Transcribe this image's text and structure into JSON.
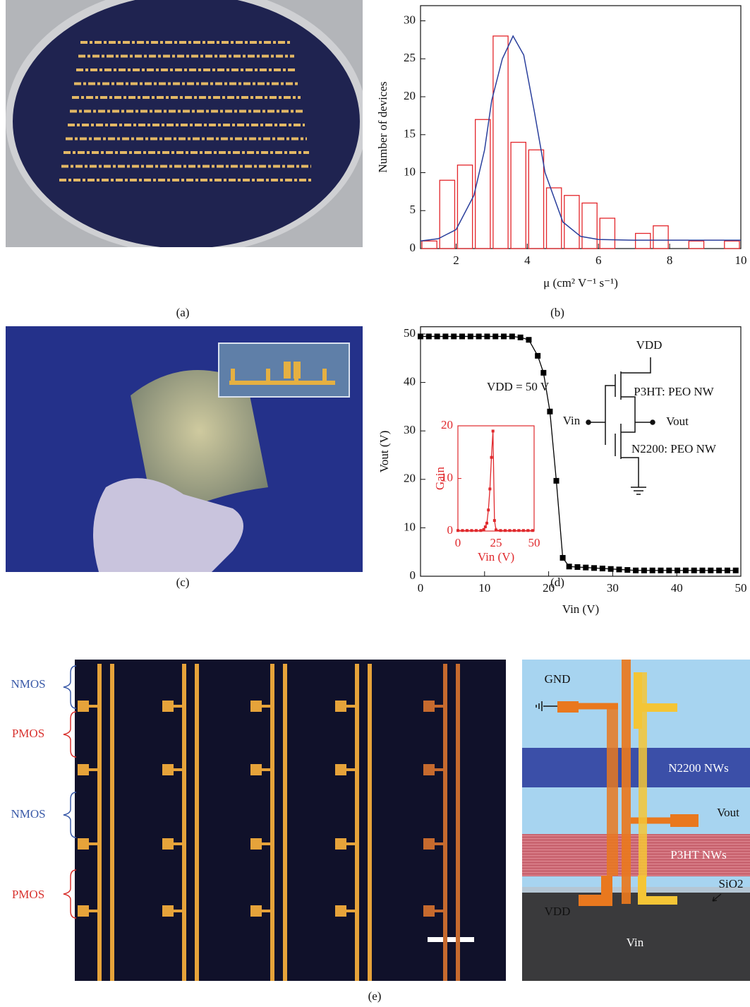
{
  "figure": {
    "panel_labels": [
      "(a)",
      "(b)",
      "(c)",
      "(d)",
      "(e)"
    ],
    "e_labels": [
      "NMOS",
      "PMOS",
      "NMOS",
      "PMOS"
    ],
    "schematic_labels": [
      "GND",
      "N2200 NWs",
      "Vout",
      "P3HT NWs",
      "VDD",
      "SiO2",
      "Vin"
    ]
  },
  "chart_data": [
    {
      "type": "histogram",
      "xlabel": "μ (cm² V⁻¹ s⁻¹)",
      "ylabel": "Number of devices",
      "bins": [
        1.0,
        1.5,
        2.0,
        2.5,
        3.0,
        3.5,
        4.0,
        4.5,
        5.0,
        5.5,
        6.0,
        6.5,
        7.0,
        7.5,
        8.0,
        8.5,
        9.0,
        9.5,
        10.0
      ],
      "values": [
        1,
        9,
        11,
        17,
        28,
        14,
        13,
        8,
        7,
        6,
        4,
        0,
        2,
        3,
        0,
        1,
        0,
        1
      ],
      "color": "#e3262b",
      "fit": {
        "color": "#2a3f9c",
        "x": [
          1.0,
          1.5,
          2.0,
          2.5,
          2.8,
          3.0,
          3.3,
          3.6,
          3.9,
          4.2,
          4.5,
          5.0,
          5.5,
          6.0,
          7.0,
          8.0,
          9.0,
          10.0
        ],
        "values": [
          1.0,
          1.3,
          2.5,
          7,
          13,
          19.5,
          25,
          28,
          25.5,
          18,
          10,
          3.5,
          1.6,
          1.2,
          1.1,
          1.1,
          1.1,
          1.1
        ]
      },
      "xlim": [
        1.0,
        10.0
      ],
      "ylim": [
        0,
        32
      ],
      "xticks": [
        2,
        4,
        6,
        8,
        10
      ],
      "yticks": [
        0,
        5,
        10,
        15,
        20,
        25,
        30
      ]
    },
    {
      "type": "line",
      "xlabel": "Vin (V)",
      "ylabel": "Vout (V)",
      "x": [
        0,
        1.3,
        2.6,
        3.9,
        5.2,
        6.5,
        7.8,
        9.1,
        10.4,
        11.7,
        13,
        14.3,
        15.6,
        16.9,
        18.3,
        19.2,
        20.2,
        21.2,
        22.2,
        23.2,
        24.5,
        25.8,
        27.1,
        28.4,
        29.7,
        31,
        32.3,
        33.6,
        34.9,
        36.2,
        37.5,
        38.8,
        40.1,
        41.4,
        42.7,
        44,
        45.3,
        46.6,
        47.9,
        49.2
      ],
      "values": [
        49.5,
        49.5,
        49.5,
        49.5,
        49.5,
        49.5,
        49.5,
        49.5,
        49.5,
        49.5,
        49.5,
        49.5,
        49.3,
        48.8,
        45.5,
        42,
        34,
        19.7,
        3.8,
        2.0,
        1.9,
        1.8,
        1.7,
        1.6,
        1.5,
        1.4,
        1.3,
        1.2,
        1.2,
        1.2,
        1.2,
        1.2,
        1.2,
        1.2,
        1.2,
        1.2,
        1.2,
        1.2,
        1.2,
        1.2
      ],
      "color": "#000000",
      "xlim": [
        0,
        50
      ],
      "ylim": [
        0,
        51.5
      ],
      "xticks": [
        0,
        10,
        20,
        30,
        40,
        50
      ],
      "yticks": [
        0,
        10,
        20,
        30,
        40,
        50
      ],
      "annotations": [
        "VDD = 50 V",
        "VDD",
        "P3HT: PEO NW",
        "Vin",
        "Vout",
        "N2200: PEO NW"
      ]
    },
    {
      "type": "line",
      "xlabel": "Vin (V)",
      "ylabel": "Gain",
      "x": [
        0,
        3,
        6,
        9,
        12,
        15,
        17,
        18,
        19,
        20,
        21,
        22,
        23,
        24,
        25,
        28,
        31,
        34,
        37,
        40,
        43,
        46,
        49
      ],
      "values": [
        0.1,
        0.1,
        0.1,
        0.1,
        0.1,
        0.1,
        0.3,
        0.8,
        1.5,
        4,
        8,
        14,
        19,
        2,
        0.2,
        0.1,
        0.1,
        0.1,
        0.1,
        0.1,
        0.1,
        0.1,
        0.1
      ],
      "color": "#e0282c",
      "xlim": [
        0,
        50
      ],
      "ylim": [
        0,
        20
      ],
      "xticks": [
        0,
        25,
        50
      ],
      "yticks": [
        0,
        10,
        20
      ]
    }
  ]
}
